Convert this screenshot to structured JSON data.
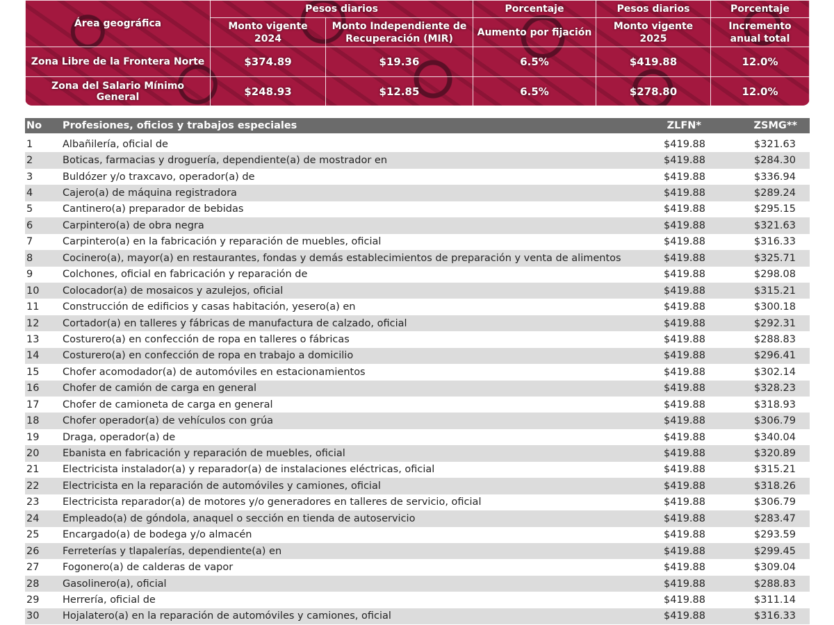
{
  "summary": {
    "headers": {
      "area": "Área geográfica",
      "group_pesos_1": "Pesos diarios",
      "group_pct_1": "Porcentaje",
      "group_pesos_2": "Pesos diarios",
      "group_pct_2": "Porcentaje",
      "monto_2024": "Monto vigente 2024",
      "mir": "Monto Independiente de Recuperación (MIR)",
      "aumento": "Aumento por fijación",
      "monto_2025": "Monto vigente 2025",
      "incremento": "Incremento anual total"
    },
    "rows": [
      {
        "area": "Zona Libre de la Frontera Norte",
        "monto_2024": "$374.89",
        "mir": "$19.36",
        "aumento": "6.5%",
        "monto_2025": "$419.88",
        "incremento": "12.0%"
      },
      {
        "area": "Zona del Salario Mínimo General",
        "monto_2024": "$248.93",
        "mir": "$12.85",
        "aumento": "6.5%",
        "monto_2025": "$278.80",
        "incremento": "12.0%"
      }
    ],
    "colors": {
      "background": "#a3183f",
      "pattern": "#5a0f26"
    }
  },
  "professions": {
    "headers": {
      "no": "No",
      "name": "Profesiones, oficios y trabajos especiales",
      "zlfn": "ZLFN*",
      "zsmg": "ZSMG**"
    },
    "rows": [
      {
        "no": "1",
        "name": "Albañilería, oficial de",
        "zlfn": "$419.88",
        "zsmg": "$321.63"
      },
      {
        "no": "2",
        "name": "Boticas, farmacias y droguería, dependiente(a) de mostrador en",
        "zlfn": "$419.88",
        "zsmg": "$284.30"
      },
      {
        "no": "3",
        "name": "Buldózer y/o traxcavo, operador(a) de",
        "zlfn": "$419.88",
        "zsmg": "$336.94"
      },
      {
        "no": "4",
        "name": "Cajero(a) de máquina registradora",
        "zlfn": "$419.88",
        "zsmg": "$289.24"
      },
      {
        "no": "5",
        "name": "Cantinero(a) preparador de bebidas",
        "zlfn": "$419.88",
        "zsmg": "$295.15"
      },
      {
        "no": "6",
        "name": "Carpintero(a) de obra negra",
        "zlfn": "$419.88",
        "zsmg": "$321.63"
      },
      {
        "no": "7",
        "name": "Carpintero(a) en la fabricación y reparación de muebles, oficial",
        "zlfn": "$419.88",
        "zsmg": "$316.33"
      },
      {
        "no": "8",
        "name": "Cocinero(a), mayor(a) en restaurantes, fondas y demás establecimientos de preparación y venta de alimentos",
        "zlfn": "$419.88",
        "zsmg": "$325.71"
      },
      {
        "no": "9",
        "name": "Colchones, oficial en fabricación y reparación de",
        "zlfn": "$419.88",
        "zsmg": "$298.08"
      },
      {
        "no": "10",
        "name": "Colocador(a) de mosaicos y azulejos, oficial",
        "zlfn": "$419.88",
        "zsmg": "$315.21"
      },
      {
        "no": "11",
        "name": "Construcción de edificios y casas habitación, yesero(a) en",
        "zlfn": "$419.88",
        "zsmg": "$300.18"
      },
      {
        "no": "12",
        "name": "Cortador(a) en talleres y fábricas de manufactura de calzado, oficial",
        "zlfn": "$419.88",
        "zsmg": "$292.31"
      },
      {
        "no": "13",
        "name": "Costurero(a) en confección de ropa en talleres o fábricas",
        "zlfn": "$419.88",
        "zsmg": "$288.83"
      },
      {
        "no": "14",
        "name": "Costurero(a) en confección de ropa en trabajo a domicilio",
        "zlfn": "$419.88",
        "zsmg": "$296.41"
      },
      {
        "no": "15",
        "name": "Chofer acomodador(a) de automóviles en estacionamientos",
        "zlfn": "$419.88",
        "zsmg": "$302.14"
      },
      {
        "no": "16",
        "name": "Chofer de camión de carga en general",
        "zlfn": "$419.88",
        "zsmg": "$328.23"
      },
      {
        "no": "17",
        "name": "Chofer de camioneta de carga en general",
        "zlfn": "$419.88",
        "zsmg": "$318.93"
      },
      {
        "no": "18",
        "name": "Chofer operador(a) de vehículos con grúa",
        "zlfn": "$419.88",
        "zsmg": "$306.79"
      },
      {
        "no": "19",
        "name": "Draga, operador(a) de",
        "zlfn": "$419.88",
        "zsmg": "$340.04"
      },
      {
        "no": "20",
        "name": "Ebanista en fabricación y reparación de muebles, oficial",
        "zlfn": "$419.88",
        "zsmg": "$320.89"
      },
      {
        "no": "21",
        "name": "Electricista instalador(a) y reparador(a) de instalaciones eléctricas, oficial",
        "zlfn": "$419.88",
        "zsmg": "$315.21"
      },
      {
        "no": "22",
        "name": "Electricista en la reparación de automóviles y camiones, oficial",
        "zlfn": "$419.88",
        "zsmg": "$318.26"
      },
      {
        "no": "23",
        "name": "Electricista reparador(a) de motores y/o generadores en talleres de servicio, oficial",
        "zlfn": "$419.88",
        "zsmg": "$306.79"
      },
      {
        "no": "24",
        "name": "Empleado(a) de góndola, anaquel o sección en tienda de autoservicio",
        "zlfn": "$419.88",
        "zsmg": "$283.47"
      },
      {
        "no": "25",
        "name": "Encargado(a) de bodega y/o almacén",
        "zlfn": "$419.88",
        "zsmg": "$293.59"
      },
      {
        "no": "26",
        "name": "Ferreterías y tlapalerías, dependiente(a) en",
        "zlfn": "$419.88",
        "zsmg": "$299.45"
      },
      {
        "no": "27",
        "name": "Fogonero(a) de calderas de vapor",
        "zlfn": "$419.88",
        "zsmg": "$309.04"
      },
      {
        "no": "28",
        "name": "Gasolinero(a), oficial",
        "zlfn": "$419.88",
        "zsmg": "$288.83"
      },
      {
        "no": "29",
        "name": "Herrería, oficial de",
        "zlfn": "$419.88",
        "zsmg": "$311.14"
      },
      {
        "no": "30",
        "name": "Hojalatero(a) en la reparación de automóviles y camiones, oficial",
        "zlfn": "$419.88",
        "zsmg": "$316.33"
      }
    ],
    "colors": {
      "header": "#6b6b6b",
      "stripe": "#dcdcdc"
    }
  }
}
